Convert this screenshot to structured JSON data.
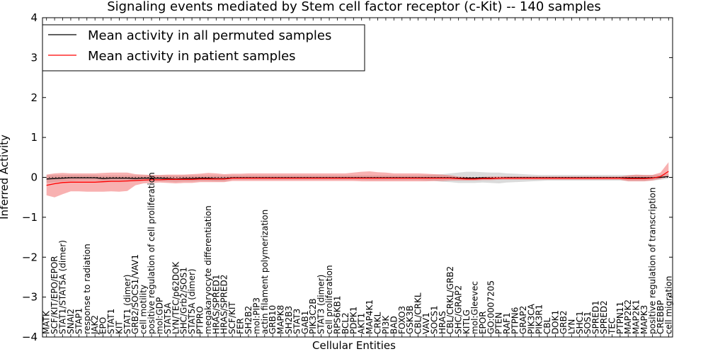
{
  "chart_data": {
    "type": "line",
    "title": "Signaling events mediated by Stem cell factor receptor (c-Kit) -- 140 samples",
    "xlabel": "Cellular Entities",
    "ylabel": "Inferred Activity",
    "ylim": [
      -4,
      4
    ],
    "yticks": [
      -4,
      -3,
      -2,
      -1,
      0,
      1,
      2,
      3,
      4
    ],
    "ytick_labels": [
      "−4",
      "−3",
      "−2",
      "−1",
      "0",
      "1",
      "2",
      "3",
      "4"
    ],
    "grid": false,
    "legend_position": "top-left",
    "categories": [
      "MATK",
      "SCF/KIT/EPO/EPOR",
      "STAT1/STAT5A (dimer)",
      "SNAI2",
      "STAP1",
      "response to radiation",
      "JAK2",
      "EPO",
      "STAT1",
      "KIT",
      "STAT1 (dimer)",
      "GRB2/SOCS1/VAV1",
      "cell motility",
      "positive regulation of cell proliferation",
      "mol:GDP",
      "STAT5A",
      "LYN/TEC/p62DOK",
      "SHC/Grb2/SOS1",
      "STAT5A (dimer)",
      "PTPRO",
      "megakaryocyte differentiation",
      "HRAS/SPRED1",
      "HRAS/SPRED2",
      "SCF/KIT",
      "FER",
      "SH2B2",
      "mol:PIP3",
      "actin filament polymerization",
      "GRB10",
      "MAPK8",
      "SH2B3",
      "STAT3",
      "GAB1",
      "PIK3C2B",
      "STAT3 (dimer)",
      "cell proliferation",
      "RPS6KB1",
      "BCL2",
      "PDPK1",
      "AKT1",
      "MAP4K1",
      "CRKL",
      "PI3K",
      "BAD",
      "FOXO3",
      "GSK3B",
      "CBL/CRKL",
      "VAV1",
      "SOCS1",
      "HRAS",
      "CBL/CRKL/GRB2",
      "SHC/GRAP2",
      "KITLG",
      "mol:Gleevec",
      "EPOR",
      "GO:0007205",
      "PTEN",
      "RAF1",
      "PTPN6",
      "GRAP2",
      "PIK3CA",
      "PIK3R1",
      "CBL",
      "DOK1",
      "GRB2",
      "LYN",
      "SHC1",
      "SOS1",
      "SPRED1",
      "SPRED2",
      "TEC",
      "PTPN11",
      "MAP2K2",
      "MAP2K1",
      "MAPK3",
      "positive regulation of transcription",
      "CREBBP",
      "cell migration"
    ],
    "series": [
      {
        "name": "Mean activity in all permuted samples",
        "color": "#000000",
        "values": [
          -0.04,
          -0.03,
          -0.02,
          -0.01,
          -0.01,
          -0.01,
          -0.01,
          -0.03,
          -0.02,
          -0.02,
          -0.02,
          -0.03,
          -0.02,
          -0.02,
          -0.02,
          -0.03,
          -0.04,
          -0.03,
          -0.03,
          -0.02,
          -0.02,
          -0.03,
          -0.03,
          -0.01,
          -0.01,
          -0.01,
          -0.01,
          -0.01,
          -0.01,
          -0.01,
          -0.01,
          -0.01,
          -0.01,
          -0.01,
          -0.01,
          -0.01,
          -0.01,
          -0.01,
          -0.01,
          -0.01,
          -0.01,
          -0.01,
          -0.01,
          -0.01,
          -0.01,
          -0.01,
          -0.01,
          -0.01,
          -0.01,
          -0.01,
          -0.01,
          -0.02,
          -0.02,
          -0.02,
          -0.01,
          -0.02,
          -0.02,
          -0.01,
          -0.01,
          -0.01,
          -0.01,
          -0.01,
          -0.01,
          -0.01,
          -0.01,
          -0.01,
          -0.01,
          -0.01,
          -0.01,
          -0.01,
          -0.01,
          -0.01,
          -0.01,
          -0.01,
          -0.01,
          -0.01,
          0.0,
          0.02
        ],
        "band_lower": [
          -0.14,
          -0.12,
          -0.1,
          -0.09,
          -0.08,
          -0.08,
          -0.08,
          -0.1,
          -0.1,
          -0.1,
          -0.1,
          -0.1,
          -0.09,
          -0.09,
          -0.09,
          -0.1,
          -0.11,
          -0.1,
          -0.1,
          -0.09,
          -0.09,
          -0.1,
          -0.1,
          -0.06,
          -0.06,
          -0.06,
          -0.06,
          -0.06,
          -0.06,
          -0.06,
          -0.06,
          -0.06,
          -0.06,
          -0.06,
          -0.06,
          -0.06,
          -0.06,
          -0.06,
          -0.06,
          -0.06,
          -0.07,
          -0.07,
          -0.07,
          -0.07,
          -0.07,
          -0.07,
          -0.07,
          -0.08,
          -0.09,
          -0.11,
          -0.12,
          -0.14,
          -0.14,
          -0.14,
          -0.13,
          -0.14,
          -0.15,
          -0.13,
          -0.12,
          -0.11,
          -0.1,
          -0.09,
          -0.08,
          -0.08,
          -0.08,
          -0.08,
          -0.08,
          -0.08,
          -0.08,
          -0.08,
          -0.08,
          -0.08,
          -0.09,
          -0.09,
          -0.09,
          -0.08,
          -0.06,
          -0.03
        ],
        "band_upper": [
          0.06,
          0.06,
          0.06,
          0.06,
          0.06,
          0.06,
          0.06,
          0.05,
          0.05,
          0.05,
          0.05,
          0.05,
          0.05,
          0.05,
          0.05,
          0.05,
          0.04,
          0.05,
          0.05,
          0.05,
          0.05,
          0.05,
          0.05,
          0.05,
          0.05,
          0.05,
          0.05,
          0.05,
          0.05,
          0.05,
          0.05,
          0.05,
          0.05,
          0.05,
          0.05,
          0.05,
          0.05,
          0.05,
          0.05,
          0.05,
          0.05,
          0.05,
          0.05,
          0.05,
          0.05,
          0.05,
          0.05,
          0.06,
          0.07,
          0.08,
          0.1,
          0.12,
          0.14,
          0.14,
          0.13,
          0.12,
          0.12,
          0.1,
          0.09,
          0.08,
          0.07,
          0.06,
          0.06,
          0.06,
          0.06,
          0.06,
          0.06,
          0.06,
          0.06,
          0.06,
          0.06,
          0.06,
          0.06,
          0.06,
          0.06,
          0.06,
          0.07,
          0.08
        ]
      },
      {
        "name": "Mean activity in patient samples",
        "color": "#ff0000",
        "values": [
          -0.2,
          -0.16,
          -0.13,
          -0.12,
          -0.12,
          -0.12,
          -0.12,
          -0.11,
          -0.1,
          -0.1,
          -0.09,
          -0.08,
          -0.07,
          -0.06,
          -0.06,
          -0.05,
          -0.05,
          -0.05,
          -0.05,
          -0.04,
          -0.04,
          -0.04,
          -0.04,
          -0.02,
          -0.02,
          -0.02,
          -0.02,
          -0.02,
          -0.02,
          -0.02,
          -0.02,
          -0.02,
          -0.02,
          -0.02,
          -0.02,
          -0.02,
          -0.02,
          -0.02,
          -0.02,
          -0.02,
          -0.02,
          -0.02,
          -0.02,
          -0.02,
          -0.02,
          -0.02,
          -0.02,
          -0.02,
          -0.02,
          -0.02,
          -0.02,
          -0.03,
          -0.04,
          -0.04,
          -0.03,
          -0.03,
          -0.02,
          -0.02,
          -0.02,
          -0.02,
          -0.02,
          -0.02,
          -0.02,
          -0.02,
          -0.02,
          -0.02,
          -0.02,
          -0.02,
          -0.02,
          -0.02,
          -0.02,
          -0.02,
          -0.03,
          -0.03,
          -0.03,
          -0.02,
          0.02,
          0.15
        ],
        "band_lower": [
          -0.45,
          -0.5,
          -0.42,
          -0.35,
          -0.35,
          -0.36,
          -0.36,
          -0.36,
          -0.35,
          -0.36,
          -0.34,
          -0.2,
          -0.15,
          -0.14,
          -0.13,
          -0.14,
          -0.15,
          -0.14,
          -0.14,
          -0.12,
          -0.12,
          -0.12,
          -0.12,
          -0.09,
          -0.09,
          -0.09,
          -0.09,
          -0.09,
          -0.09,
          -0.09,
          -0.09,
          -0.09,
          -0.09,
          -0.09,
          -0.09,
          -0.09,
          -0.09,
          -0.09,
          -0.09,
          -0.1,
          -0.1,
          -0.1,
          -0.1,
          -0.1,
          -0.1,
          -0.1,
          -0.1,
          -0.1,
          -0.09,
          -0.09,
          -0.08,
          -0.08,
          -0.08,
          -0.08,
          -0.07,
          -0.07,
          -0.06,
          -0.06,
          -0.06,
          -0.06,
          -0.06,
          -0.06,
          -0.06,
          -0.06,
          -0.06,
          -0.06,
          -0.06,
          -0.06,
          -0.06,
          -0.06,
          -0.06,
          -0.06,
          -0.1,
          -0.1,
          -0.1,
          -0.08,
          -0.04,
          0.02
        ],
        "band_upper": [
          0.07,
          0.1,
          0.11,
          0.1,
          0.1,
          0.1,
          0.1,
          0.11,
          0.12,
          0.12,
          0.12,
          0.08,
          0.07,
          0.06,
          0.06,
          0.07,
          0.07,
          0.07,
          0.08,
          0.09,
          0.11,
          0.1,
          0.08,
          0.09,
          0.09,
          0.1,
          0.1,
          0.1,
          0.1,
          0.1,
          0.1,
          0.1,
          0.1,
          0.1,
          0.1,
          0.1,
          0.1,
          0.1,
          0.12,
          0.14,
          0.15,
          0.13,
          0.12,
          0.1,
          0.1,
          0.1,
          0.1,
          0.09,
          0.08,
          0.07,
          0.05,
          0.02,
          0.01,
          0.0,
          0.01,
          0.02,
          0.02,
          0.02,
          0.02,
          0.02,
          0.02,
          0.02,
          0.02,
          0.02,
          0.02,
          0.02,
          0.02,
          0.02,
          0.02,
          0.02,
          0.02,
          0.02,
          0.05,
          0.07,
          0.06,
          0.06,
          0.12,
          0.38
        ]
      }
    ]
  }
}
